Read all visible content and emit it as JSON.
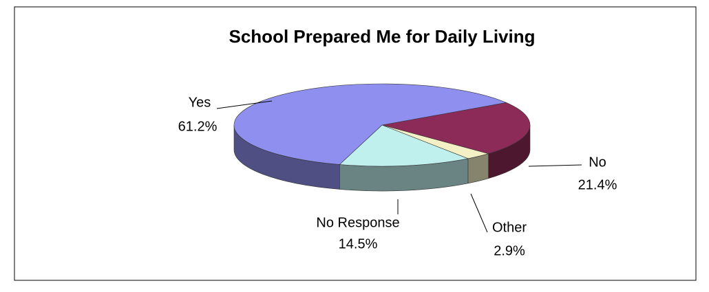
{
  "chart_data": {
    "type": "pie3d",
    "title": "School Prepared Me for Daily Living",
    "categories": [
      "Yes",
      "No",
      "Other",
      "No Response"
    ],
    "values": [
      61.2,
      21.4,
      2.9,
      14.5
    ],
    "value_labels": [
      "61.2%",
      "21.4%",
      "2.9%",
      "14.5%"
    ],
    "colors": [
      "#8f8ff0",
      "#8c2a58",
      "#f4f0c6",
      "#c0f0ee"
    ]
  }
}
